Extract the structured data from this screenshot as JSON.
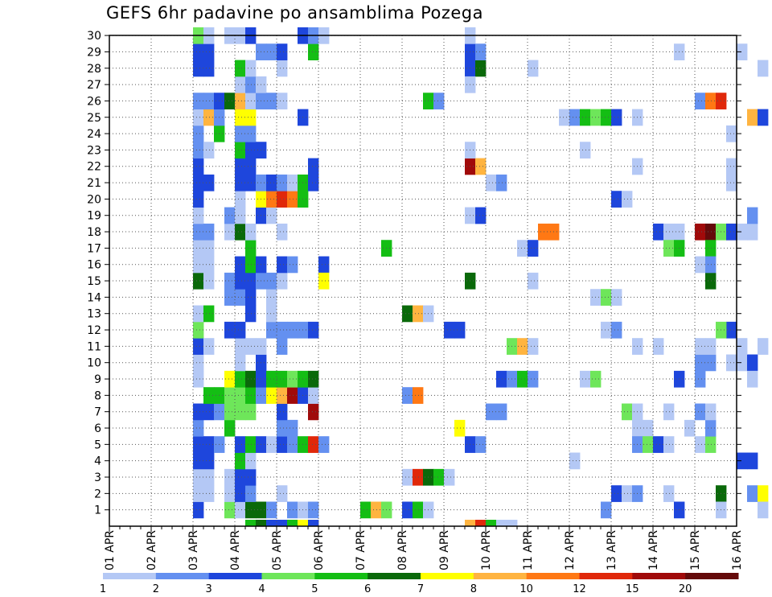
{
  "chart_data": {
    "type": "heatmap",
    "title": "GEFS 6hr padavine po ansamblima Pozega",
    "xlabel": "",
    "ylabel": "",
    "x_ticks": [
      "01 APR",
      "02 APR",
      "03 APR",
      "04 APR",
      "05 APR",
      "06 APR",
      "07 APR",
      "08 APR",
      "09 APR",
      "10 APR",
      "11 APR",
      "12 APR",
      "13 APR",
      "14 APR",
      "15 APR",
      "16 APR"
    ],
    "y_ticks": [
      "1",
      "2",
      "3",
      "4",
      "5",
      "6",
      "7",
      "8",
      "9",
      "10",
      "11",
      "12",
      "13",
      "14",
      "15",
      "16",
      "17",
      "18",
      "19",
      "20",
      "21",
      "22",
      "23",
      "24",
      "25",
      "26",
      "27",
      "28",
      "29",
      "30"
    ],
    "x_range": [
      0,
      60
    ],
    "y_range": [
      0,
      30
    ],
    "grid": true,
    "cell_note": "cells: [day_offset_from_01_APR, member, color_class]",
    "legend_labels": [
      "1",
      "2",
      "3",
      "4",
      "5",
      "6",
      "7",
      "8",
      "10",
      "12",
      "15",
      "20"
    ],
    "colors": [
      "#b4c8f5",
      "#6490f0",
      "#1e46dc",
      "#6ee65a",
      "#14be14",
      "#0a690a",
      "#ffff00",
      "#ffb440",
      "#ff7814",
      "#e0280a",
      "#a00a0a",
      "#640a0a"
    ],
    "cells": [
      [
        2.0,
        1,
        2
      ],
      [
        2.0,
        2,
        0
      ],
      [
        2.0,
        3,
        0
      ],
      [
        2.0,
        4,
        2
      ],
      [
        2.0,
        5,
        2
      ],
      [
        2.0,
        6,
        1
      ],
      [
        2.0,
        7,
        2
      ],
      [
        2.0,
        9,
        0
      ],
      [
        2.0,
        10,
        0
      ],
      [
        2.0,
        11,
        2
      ],
      [
        2.0,
        12,
        3
      ],
      [
        2.0,
        13,
        0
      ],
      [
        2.0,
        15,
        5
      ],
      [
        2.0,
        16,
        0
      ],
      [
        2.0,
        17,
        0
      ],
      [
        2.0,
        18,
        1
      ],
      [
        2.0,
        19,
        0
      ],
      [
        2.0,
        20,
        2
      ],
      [
        2.0,
        21,
        2
      ],
      [
        2.0,
        22,
        2
      ],
      [
        2.0,
        23,
        1
      ],
      [
        2.0,
        24,
        1
      ],
      [
        2.0,
        25,
        0
      ],
      [
        2.0,
        26,
        1
      ],
      [
        2.0,
        28,
        2
      ],
      [
        2.0,
        29,
        2
      ],
      [
        2.0,
        30,
        3
      ],
      [
        2.25,
        2,
        0
      ],
      [
        2.25,
        3,
        0
      ],
      [
        2.25,
        4,
        2
      ],
      [
        2.25,
        5,
        2
      ],
      [
        2.25,
        7,
        2
      ],
      [
        2.25,
        8,
        4
      ],
      [
        2.25,
        11,
        0
      ],
      [
        2.25,
        13,
        4
      ],
      [
        2.25,
        15,
        0
      ],
      [
        2.25,
        16,
        0
      ],
      [
        2.25,
        17,
        0
      ],
      [
        2.25,
        18,
        1
      ],
      [
        2.25,
        21,
        2
      ],
      [
        2.25,
        23,
        0
      ],
      [
        2.25,
        25,
        7
      ],
      [
        2.25,
        26,
        1
      ],
      [
        2.25,
        28,
        2
      ],
      [
        2.25,
        29,
        2
      ],
      [
        2.25,
        30,
        0
      ],
      [
        2.5,
        5,
        1
      ],
      [
        2.5,
        7,
        1
      ],
      [
        2.5,
        8,
        4
      ],
      [
        2.5,
        24,
        4
      ],
      [
        2.5,
        25,
        1
      ],
      [
        2.5,
        26,
        2
      ],
      [
        2.75,
        1,
        3
      ],
      [
        2.75,
        2,
        0
      ],
      [
        2.75,
        3,
        0
      ],
      [
        2.75,
        6,
        4
      ],
      [
        2.75,
        7,
        3
      ],
      [
        2.75,
        8,
        3
      ],
      [
        2.75,
        9,
        6
      ],
      [
        2.75,
        12,
        2
      ],
      [
        2.75,
        14,
        1
      ],
      [
        2.75,
        15,
        1
      ],
      [
        2.75,
        18,
        0
      ],
      [
        2.75,
        19,
        1
      ],
      [
        2.75,
        26,
        5
      ],
      [
        2.75,
        30,
        0
      ],
      [
        3.0,
        1,
        0
      ],
      [
        3.0,
        2,
        2
      ],
      [
        3.0,
        3,
        2
      ],
      [
        3.0,
        4,
        4
      ],
      [
        3.0,
        5,
        2
      ],
      [
        3.0,
        7,
        3
      ],
      [
        3.0,
        8,
        3
      ],
      [
        3.0,
        9,
        4
      ],
      [
        3.0,
        10,
        0
      ],
      [
        3.0,
        11,
        0
      ],
      [
        3.0,
        12,
        2
      ],
      [
        3.0,
        14,
        1
      ],
      [
        3.0,
        15,
        2
      ],
      [
        3.0,
        16,
        2
      ],
      [
        3.0,
        18,
        5
      ],
      [
        3.0,
        19,
        0
      ],
      [
        3.0,
        20,
        0
      ],
      [
        3.0,
        21,
        2
      ],
      [
        3.0,
        22,
        2
      ],
      [
        3.0,
        23,
        4
      ],
      [
        3.0,
        24,
        1
      ],
      [
        3.0,
        25,
        6
      ],
      [
        3.0,
        26,
        7
      ],
      [
        3.0,
        27,
        0
      ],
      [
        3.0,
        28,
        4
      ],
      [
        3.0,
        30,
        0
      ],
      [
        3.25,
        0,
        4
      ],
      [
        3.25,
        1,
        5
      ],
      [
        3.25,
        2,
        1
      ],
      [
        3.25,
        3,
        2
      ],
      [
        3.25,
        4,
        0
      ],
      [
        3.25,
        5,
        4
      ],
      [
        3.25,
        7,
        3
      ],
      [
        3.25,
        8,
        4
      ],
      [
        3.25,
        9,
        5
      ],
      [
        3.25,
        11,
        0
      ],
      [
        3.25,
        13,
        2
      ],
      [
        3.25,
        14,
        2
      ],
      [
        3.25,
        15,
        2
      ],
      [
        3.25,
        16,
        4
      ],
      [
        3.25,
        17,
        4
      ],
      [
        3.25,
        18,
        0
      ],
      [
        3.25,
        21,
        2
      ],
      [
        3.25,
        22,
        2
      ],
      [
        3.25,
        23,
        2
      ],
      [
        3.25,
        24,
        1
      ],
      [
        3.25,
        25,
        6
      ],
      [
        3.25,
        26,
        0
      ],
      [
        3.25,
        27,
        1
      ],
      [
        3.25,
        28,
        0
      ],
      [
        3.25,
        30,
        2
      ],
      [
        3.5,
        0,
        5
      ],
      [
        3.5,
        1,
        5
      ],
      [
        3.5,
        5,
        2
      ],
      [
        3.5,
        8,
        1
      ],
      [
        3.5,
        9,
        2
      ],
      [
        3.5,
        10,
        2
      ],
      [
        3.5,
        11,
        0
      ],
      [
        3.5,
        15,
        1
      ],
      [
        3.5,
        16,
        2
      ],
      [
        3.5,
        19,
        2
      ],
      [
        3.5,
        20,
        6
      ],
      [
        3.5,
        21,
        1
      ],
      [
        3.5,
        23,
        2
      ],
      [
        3.5,
        26,
        1
      ],
      [
        3.5,
        27,
        0
      ],
      [
        3.5,
        29,
        1
      ],
      [
        3.75,
        0,
        2
      ],
      [
        3.75,
        1,
        1
      ],
      [
        3.75,
        5,
        0
      ],
      [
        3.75,
        8,
        6
      ],
      [
        3.75,
        9,
        4
      ],
      [
        3.75,
        12,
        1
      ],
      [
        3.75,
        13,
        0
      ],
      [
        3.75,
        14,
        0
      ],
      [
        3.75,
        15,
        1
      ],
      [
        3.75,
        19,
        0
      ],
      [
        3.75,
        20,
        8
      ],
      [
        3.75,
        21,
        2
      ],
      [
        3.75,
        26,
        1
      ],
      [
        3.75,
        29,
        1
      ],
      [
        4.0,
        0,
        2
      ],
      [
        4.0,
        2,
        0
      ],
      [
        4.0,
        5,
        2
      ],
      [
        4.0,
        6,
        1
      ],
      [
        4.0,
        7,
        2
      ],
      [
        4.0,
        8,
        7
      ],
      [
        4.0,
        9,
        4
      ],
      [
        4.0,
        11,
        1
      ],
      [
        4.0,
        12,
        1
      ],
      [
        4.0,
        15,
        0
      ],
      [
        4.0,
        16,
        2
      ],
      [
        4.0,
        18,
        0
      ],
      [
        4.0,
        20,
        9
      ],
      [
        4.0,
        21,
        1
      ],
      [
        4.0,
        26,
        0
      ],
      [
        4.0,
        28,
        0
      ],
      [
        4.0,
        29,
        2
      ],
      [
        4.25,
        0,
        4
      ],
      [
        4.25,
        1,
        1
      ],
      [
        4.25,
        5,
        1
      ],
      [
        4.25,
        6,
        1
      ],
      [
        4.25,
        8,
        10
      ],
      [
        4.25,
        9,
        3
      ],
      [
        4.25,
        12,
        1
      ],
      [
        4.25,
        16,
        1
      ],
      [
        4.25,
        20,
        8
      ],
      [
        4.25,
        21,
        0
      ],
      [
        4.5,
        0,
        6
      ],
      [
        4.5,
        1,
        0
      ],
      [
        4.5,
        5,
        4
      ],
      [
        4.5,
        8,
        2
      ],
      [
        4.5,
        9,
        4
      ],
      [
        4.5,
        12,
        1
      ],
      [
        4.5,
        20,
        4
      ],
      [
        4.5,
        21,
        4
      ],
      [
        4.5,
        25,
        2
      ],
      [
        4.5,
        30,
        2
      ],
      [
        4.75,
        0,
        2
      ],
      [
        4.75,
        1,
        1
      ],
      [
        4.75,
        5,
        9
      ],
      [
        4.75,
        7,
        10
      ],
      [
        4.75,
        8,
        0
      ],
      [
        4.75,
        9,
        5
      ],
      [
        4.75,
        12,
        2
      ],
      [
        4.75,
        21,
        2
      ],
      [
        4.75,
        22,
        2
      ],
      [
        4.75,
        29,
        4
      ],
      [
        4.75,
        30,
        1
      ],
      [
        5.0,
        5,
        1
      ],
      [
        5.0,
        16,
        2
      ],
      [
        5.0,
        15,
        6
      ],
      [
        5.0,
        30,
        0
      ],
      [
        6.0,
        1,
        4
      ],
      [
        6.25,
        1,
        7
      ],
      [
        6.5,
        1,
        3
      ],
      [
        6.5,
        17,
        4
      ],
      [
        7.0,
        1,
        2
      ],
      [
        7.0,
        3,
        0
      ],
      [
        7.0,
        8,
        1
      ],
      [
        7.0,
        13,
        5
      ],
      [
        7.25,
        1,
        4
      ],
      [
        7.25,
        3,
        9
      ],
      [
        7.25,
        8,
        8
      ],
      [
        7.25,
        13,
        7
      ],
      [
        7.5,
        1,
        0
      ],
      [
        7.5,
        3,
        5
      ],
      [
        7.5,
        13,
        0
      ],
      [
        7.5,
        26,
        4
      ],
      [
        7.75,
        3,
        4
      ],
      [
        7.75,
        26,
        1
      ],
      [
        8.0,
        3,
        0
      ],
      [
        8.0,
        12,
        2
      ],
      [
        8.25,
        12,
        2
      ],
      [
        8.25,
        6,
        6
      ],
      [
        8.5,
        0,
        7
      ],
      [
        8.75,
        0,
        9
      ],
      [
        9.0,
        0,
        4
      ],
      [
        8.5,
        19,
        0
      ],
      [
        8.5,
        22,
        10
      ],
      [
        8.75,
        22,
        7
      ],
      [
        8.75,
        19,
        0
      ],
      [
        8.75,
        19,
        2
      ],
      [
        8.5,
        5,
        2
      ],
      [
        8.75,
        5,
        1
      ],
      [
        8.5,
        15,
        5
      ],
      [
        8.5,
        28,
        2
      ],
      [
        8.75,
        28,
        5
      ],
      [
        8.5,
        29,
        2
      ],
      [
        8.75,
        29,
        1
      ],
      [
        8.5,
        30,
        0
      ],
      [
        8.5,
        23,
        0
      ],
      [
        8.5,
        27,
        0
      ],
      [
        9.25,
        0,
        0
      ],
      [
        9.5,
        0,
        0
      ],
      [
        9.0,
        7,
        1
      ],
      [
        9.25,
        7,
        1
      ],
      [
        9.0,
        21,
        0
      ],
      [
        9.25,
        21,
        1
      ],
      [
        9.25,
        9,
        2
      ],
      [
        9.5,
        9,
        1
      ],
      [
        9.75,
        9,
        4
      ],
      [
        10.0,
        9,
        1
      ],
      [
        9.5,
        11,
        3
      ],
      [
        9.75,
        11,
        7
      ],
      [
        10.0,
        11,
        0
      ],
      [
        9.75,
        17,
        0
      ],
      [
        10.0,
        17,
        2
      ],
      [
        10.25,
        18,
        8
      ],
      [
        10.5,
        18,
        8
      ],
      [
        10.0,
        15,
        0
      ],
      [
        10.0,
        28,
        0
      ],
      [
        10.75,
        25,
        0
      ],
      [
        11.0,
        25,
        1
      ],
      [
        11.25,
        25,
        4
      ],
      [
        11.5,
        25,
        3
      ],
      [
        11.75,
        25,
        4
      ],
      [
        12.0,
        25,
        2
      ],
      [
        11.0,
        4,
        0
      ],
      [
        11.25,
        9,
        0
      ],
      [
        11.5,
        9,
        3
      ],
      [
        11.25,
        23,
        0
      ],
      [
        11.5,
        14,
        0
      ],
      [
        11.75,
        14,
        3
      ],
      [
        11.75,
        1,
        1
      ],
      [
        11.75,
        12,
        0
      ],
      [
        12.0,
        12,
        1
      ],
      [
        12.0,
        14,
        0
      ],
      [
        12.0,
        20,
        2
      ],
      [
        12.25,
        20,
        0
      ],
      [
        12.25,
        7,
        3
      ],
      [
        12.5,
        7,
        0
      ],
      [
        12.5,
        6,
        0
      ],
      [
        12.75,
        6,
        0
      ],
      [
        12.0,
        2,
        2
      ],
      [
        12.25,
        2,
        0
      ],
      [
        12.5,
        2,
        1
      ],
      [
        12.5,
        5,
        1
      ],
      [
        12.75,
        5,
        3
      ],
      [
        12.5,
        11,
        0
      ],
      [
        12.5,
        22,
        0
      ],
      [
        12.5,
        25,
        0
      ],
      [
        13.0,
        11,
        0
      ],
      [
        13.0,
        5,
        2
      ],
      [
        13.25,
        5,
        0
      ],
      [
        13.0,
        18,
        2
      ],
      [
        13.25,
        18,
        0
      ],
      [
        13.25,
        7,
        0
      ],
      [
        13.25,
        2,
        0
      ],
      [
        13.5,
        9,
        2
      ],
      [
        13.5,
        1,
        2
      ],
      [
        13.5,
        29,
        0
      ],
      [
        13.5,
        18,
        0
      ],
      [
        13.25,
        17,
        3
      ],
      [
        13.5,
        17,
        4
      ],
      [
        13.75,
        6,
        0
      ],
      [
        14.0,
        9,
        1
      ],
      [
        14.0,
        10,
        1
      ],
      [
        14.0,
        11,
        0
      ],
      [
        14.0,
        7,
        1
      ],
      [
        14.0,
        5,
        0
      ],
      [
        14.25,
        5,
        3
      ],
      [
        14.25,
        6,
        1
      ],
      [
        14.25,
        7,
        0
      ],
      [
        14.0,
        16,
        0
      ],
      [
        14.0,
        26,
        1
      ],
      [
        14.25,
        26,
        8
      ],
      [
        14.5,
        26,
        9
      ],
      [
        14.0,
        18,
        10
      ],
      [
        14.25,
        18,
        11
      ],
      [
        14.5,
        18,
        3
      ],
      [
        14.75,
        18,
        7
      ],
      [
        14.75,
        18,
        2
      ],
      [
        14.25,
        17,
        4
      ],
      [
        14.25,
        15,
        5
      ],
      [
        14.25,
        16,
        1
      ],
      [
        14.25,
        10,
        1
      ],
      [
        14.25,
        11,
        0
      ],
      [
        14.5,
        2,
        5
      ],
      [
        14.5,
        1,
        0
      ],
      [
        14.75,
        12,
        2
      ],
      [
        14.75,
        21,
        0
      ],
      [
        14.75,
        22,
        0
      ],
      [
        14.75,
        24,
        0
      ],
      [
        14.5,
        12,
        3
      ],
      [
        14.75,
        10,
        0
      ],
      [
        15.0,
        10,
        0
      ],
      [
        15.25,
        10,
        2
      ],
      [
        15.0,
        11,
        0
      ],
      [
        15.0,
        18,
        0
      ],
      [
        15.25,
        18,
        0
      ],
      [
        15.0,
        4,
        2
      ],
      [
        15.25,
        4,
        2
      ],
      [
        15.0,
        29,
        0
      ],
      [
        15.25,
        9,
        0
      ],
      [
        15.25,
        2,
        1
      ],
      [
        15.5,
        2,
        6
      ],
      [
        15.25,
        25,
        7
      ],
      [
        15.5,
        25,
        2
      ],
      [
        15.25,
        19,
        1
      ],
      [
        15.5,
        28,
        0
      ],
      [
        15.5,
        1,
        0
      ],
      [
        15.5,
        11,
        0
      ]
    ],
    "legend_position": "bottom"
  }
}
